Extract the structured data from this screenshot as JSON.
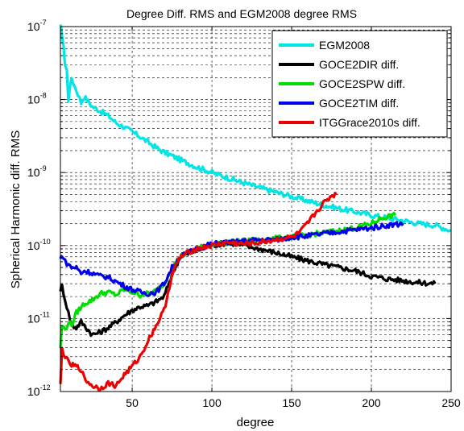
{
  "chart_data": {
    "type": "line",
    "title": "Degree Diff. RMS and EGM2008 degree RMS",
    "xlabel": "degree",
    "ylabel": "Spherical Harmonic diff. RMS",
    "xlim": [
      5,
      250
    ],
    "ylim": [
      1e-12,
      1e-07
    ],
    "yscale": "log",
    "grid": true,
    "legend_position": "top-right",
    "x_ticks": [
      50,
      100,
      150,
      200,
      250
    ],
    "y_ticks": [
      {
        "base": "10",
        "exp": "-12",
        "value": 1e-12
      },
      {
        "base": "10",
        "exp": "-11",
        "value": 1e-11
      },
      {
        "base": "10",
        "exp": "-10",
        "value": 1e-10
      },
      {
        "base": "10",
        "exp": "-9",
        "value": 1e-09
      },
      {
        "base": "10",
        "exp": "-8",
        "value": 1e-08
      },
      {
        "base": "10",
        "exp": "-7",
        "value": 1e-07
      }
    ],
    "series": [
      {
        "name": "EGM2008",
        "color": "#00e5e5",
        "x": [
          5,
          6,
          7,
          8,
          9,
          10,
          12,
          14,
          16,
          18,
          20,
          25,
          30,
          35,
          40,
          45,
          50,
          55,
          60,
          65,
          70,
          75,
          80,
          85,
          90,
          95,
          100,
          110,
          120,
          130,
          140,
          150,
          160,
          170,
          180,
          190,
          200,
          210,
          220,
          230,
          240,
          250
        ],
        "y": [
          1e-07,
          8e-08,
          5e-08,
          3e-08,
          2.5e-08,
          1e-08,
          2e-08,
          1.5e-08,
          1.2e-08,
          9e-09,
          1.1e-08,
          8e-09,
          7e-09,
          6e-09,
          4.8e-09,
          4.2e-09,
          3.6e-09,
          3.1e-09,
          2.6e-09,
          2.2e-09,
          1.9e-09,
          1.7e-09,
          1.5e-09,
          1.35e-09,
          1.2e-09,
          1.1e-09,
          1e-09,
          8.5e-10,
          7.2e-10,
          6.2e-10,
          5.4e-10,
          4.7e-10,
          4.1e-10,
          3.6e-10,
          3.2e-10,
          2.9e-10,
          2.6e-10,
          2.4e-10,
          2.2e-10,
          2e-10,
          1.9e-10,
          1.6e-10
        ]
      },
      {
        "name": "GOCE2DIR diff.",
        "color": "#000000",
        "x": [
          5,
          6,
          8,
          10,
          12,
          15,
          18,
          20,
          25,
          30,
          35,
          40,
          45,
          50,
          55,
          60,
          65,
          70,
          75,
          80,
          90,
          100,
          110,
          120,
          130,
          140,
          150,
          160,
          170,
          180,
          190,
          200,
          210,
          220,
          230,
          240
        ],
        "y": [
          2.5e-11,
          2.8e-11,
          1.8e-11,
          1.2e-11,
          8e-12,
          7.5e-12,
          9e-12,
          8e-12,
          6e-12,
          6.5e-12,
          7.5e-12,
          9e-12,
          1.1e-11,
          1.3e-11,
          1.45e-11,
          1.5e-11,
          1.7e-11,
          2e-11,
          4e-11,
          7e-11,
          8.5e-11,
          1e-10,
          1.1e-10,
          1e-10,
          9e-11,
          8e-11,
          7e-11,
          6.2e-11,
          5.5e-11,
          5e-11,
          4.5e-11,
          3.8e-11,
          3.5e-11,
          3.3e-11,
          3.1e-11,
          3e-11
        ]
      },
      {
        "name": "GOCE2SPW diff.",
        "color": "#00dd00",
        "x": [
          5,
          6,
          8,
          10,
          12,
          15,
          20,
          25,
          30,
          35,
          40,
          45,
          50,
          55,
          60,
          65,
          70,
          75,
          80,
          90,
          100,
          110,
          120,
          130,
          140,
          150,
          160,
          170,
          180,
          190,
          200,
          205,
          210,
          215
        ],
        "y": [
          4e-12,
          8e-12,
          7e-12,
          9e-12,
          8e-12,
          1.2e-11,
          1.6e-11,
          1.8e-11,
          2.2e-11,
          2.3e-11,
          2.1e-11,
          2.5e-11,
          2.3e-11,
          2.1e-11,
          2.2e-11,
          2.4e-11,
          3e-11,
          5e-11,
          7e-11,
          9e-11,
          1.05e-10,
          1.1e-10,
          1.15e-10,
          1.2e-10,
          1.25e-10,
          1.3e-10,
          1.4e-10,
          1.5e-10,
          1.6e-10,
          1.75e-10,
          2e-10,
          2.3e-10,
          2.5e-10,
          2.6e-10
        ]
      },
      {
        "name": "GOCE2TIM diff.",
        "color": "#0000ee",
        "x": [
          5,
          6,
          8,
          10,
          12,
          15,
          18,
          20,
          25,
          30,
          35,
          40,
          45,
          50,
          55,
          60,
          65,
          70,
          75,
          80,
          90,
          100,
          110,
          120,
          130,
          140,
          150,
          160,
          170,
          180,
          190,
          200,
          210,
          220
        ],
        "y": [
          6.5e-11,
          7.5e-11,
          6e-11,
          5.5e-11,
          5e-11,
          5e-11,
          4.2e-11,
          4.5e-11,
          4.2e-11,
          3.8e-11,
          3.7e-11,
          3.2e-11,
          2.8e-11,
          2.5e-11,
          2.3e-11,
          2.2e-11,
          2.3e-11,
          3e-11,
          5e-11,
          7e-11,
          9e-11,
          1.05e-10,
          1.1e-10,
          1.15e-10,
          1.2e-10,
          1.2e-10,
          1.3e-10,
          1.35e-10,
          1.45e-10,
          1.55e-10,
          1.65e-10,
          1.75e-10,
          1.9e-10,
          2e-10
        ]
      },
      {
        "name": "ITGGrace2010s diff.",
        "color": "#ee0000",
        "x": [
          5,
          6,
          8,
          10,
          12,
          15,
          18,
          20,
          25,
          30,
          35,
          40,
          45,
          50,
          55,
          60,
          65,
          70,
          75,
          80,
          90,
          100,
          110,
          120,
          130,
          140,
          150,
          155,
          160,
          165,
          170,
          175,
          178
        ],
        "y": [
          1.2e-12,
          3.8e-12,
          3e-12,
          2.5e-12,
          2.3e-12,
          2.2e-12,
          2e-12,
          1.5e-12,
          1.2e-12,
          1.1e-12,
          1.3e-12,
          1.2e-12,
          1.7e-12,
          2.2e-12,
          3e-12,
          5e-12,
          8e-12,
          1.3e-11,
          4e-11,
          7e-11,
          9e-11,
          1e-10,
          1.1e-10,
          1.05e-10,
          1.1e-10,
          1.2e-10,
          1.3e-10,
          1.5e-10,
          2e-10,
          2.8e-10,
          3.8e-10,
          4.8e-10,
          5e-10
        ]
      }
    ]
  }
}
